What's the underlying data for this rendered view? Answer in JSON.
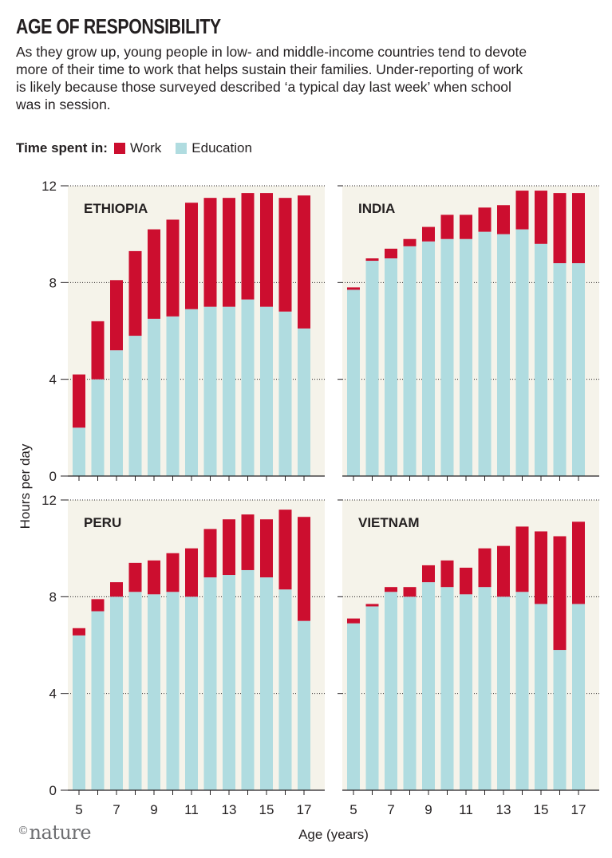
{
  "header": {
    "title": "AGE OF RESPONSIBILITY",
    "subtitle": "As they grow up, young people in low- and middle-income countries tend to devote more of their time to work that helps sustain their families. Under-reporting of work is likely because those surveyed described ‘a typical day last week’ when school was in session."
  },
  "legend": {
    "title": "Time spent in:",
    "work_label": "Work",
    "education_label": "Education"
  },
  "colors": {
    "work": "#cc0e2f",
    "education": "#b0dce0",
    "panel_bg": "#f5f3ea",
    "grid": "#231f20"
  },
  "footer": {
    "logo_text": "nature",
    "copyright_symbol": "©"
  },
  "chart_data": {
    "type": "bar",
    "stacked": true,
    "xlabel": "Age (years)",
    "ylabel": "Hours per day",
    "ylim": [
      0,
      12
    ],
    "yticks": [
      0,
      4,
      8,
      12
    ],
    "x": [
      5,
      6,
      7,
      8,
      9,
      10,
      11,
      12,
      13,
      14,
      15,
      16,
      17
    ],
    "xtick_labels": [
      5,
      7,
      9,
      11,
      13,
      15,
      17
    ],
    "panels": [
      {
        "name": "ETHIOPIA",
        "series": [
          {
            "name": "Education",
            "values": [
              2.0,
              4.0,
              5.2,
              5.8,
              6.5,
              6.6,
              6.9,
              7.0,
              7.0,
              7.3,
              7.0,
              6.8,
              6.1
            ]
          },
          {
            "name": "Work",
            "values": [
              2.2,
              2.4,
              2.9,
              3.5,
              3.7,
              4.0,
              4.4,
              4.5,
              4.5,
              4.4,
              4.7,
              4.7,
              5.5
            ]
          }
        ]
      },
      {
        "name": "INDIA",
        "series": [
          {
            "name": "Education",
            "values": [
              7.7,
              8.9,
              9.0,
              9.5,
              9.7,
              9.8,
              9.8,
              10.1,
              10.0,
              10.2,
              9.6,
              8.8,
              8.8
            ]
          },
          {
            "name": "Work",
            "values": [
              0.1,
              0.1,
              0.4,
              0.3,
              0.6,
              1.0,
              1.0,
              1.0,
              1.2,
              1.6,
              2.2,
              2.9,
              2.9
            ]
          }
        ]
      },
      {
        "name": "PERU",
        "series": [
          {
            "name": "Education",
            "values": [
              6.4,
              7.4,
              8.0,
              8.2,
              8.1,
              8.2,
              8.0,
              8.8,
              8.9,
              9.1,
              8.8,
              8.3,
              7.0
            ]
          },
          {
            "name": "Work",
            "values": [
              0.3,
              0.5,
              0.6,
              1.2,
              1.4,
              1.6,
              2.0,
              2.0,
              2.3,
              2.3,
              2.4,
              3.3,
              4.3
            ]
          }
        ]
      },
      {
        "name": "VIETNAM",
        "series": [
          {
            "name": "Education",
            "values": [
              6.9,
              7.6,
              8.2,
              8.0,
              8.6,
              8.4,
              8.1,
              8.4,
              8.0,
              8.2,
              7.7,
              5.8,
              7.7
            ]
          },
          {
            "name": "Work",
            "values": [
              0.2,
              0.1,
              0.2,
              0.4,
              0.7,
              1.1,
              1.1,
              1.6,
              2.1,
              2.7,
              3.0,
              4.7,
              3.4
            ]
          }
        ]
      }
    ]
  }
}
